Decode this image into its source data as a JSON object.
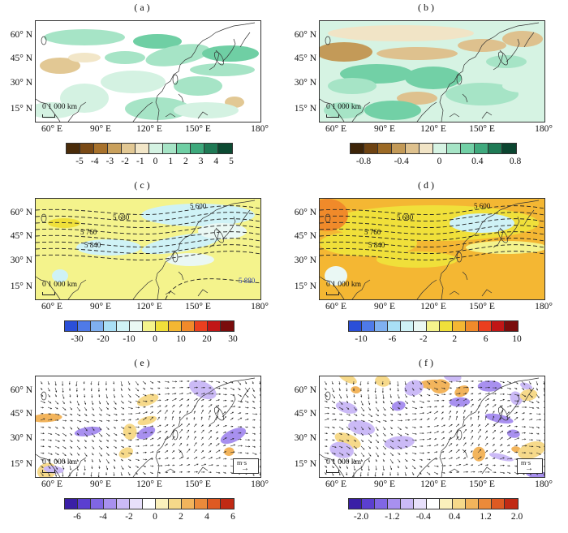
{
  "figure": {
    "panels": [
      {
        "id": "a",
        "label": "( a )",
        "kind": "scalar",
        "colorbar_ticks": [
          "-5",
          "-4",
          "-3",
          "-2",
          "-1",
          "0",
          "1",
          "2",
          "3",
          "4",
          "5"
        ],
        "colorbar_colors": [
          "#4a2c0a",
          "#7a4a16",
          "#a8722c",
          "#c9a05c",
          "#e2c894",
          "#f2e6c8",
          "#d4f2e2",
          "#a6e4c6",
          "#6fcfa4",
          "#3ea97c",
          "#1f7a55",
          "#0c4a32"
        ]
      },
      {
        "id": "b",
        "label": "( b )",
        "kind": "scalar",
        "colorbar_ticks": [
          "-0.8",
          "-0.4",
          "0",
          "0.4",
          "0.8"
        ],
        "colorbar_colors": [
          "#3d2408",
          "#6e4313",
          "#9c6a25",
          "#c39a58",
          "#dec18e",
          "#f1e4c6",
          "#d6f3e3",
          "#a6e4c6",
          "#72d0a6",
          "#40aa7e",
          "#1e7a55",
          "#0b4530"
        ]
      },
      {
        "id": "c",
        "label": "( c )",
        "kind": "contour",
        "colorbar_ticks": [
          "-30",
          "-20",
          "-10",
          "0",
          "10",
          "20",
          "30"
        ],
        "colorbar_colors": [
          "#2b4fd8",
          "#4f7ae8",
          "#7fb0f0",
          "#a9dff5",
          "#cff2f6",
          "#eaf8f4",
          "#f4f38c",
          "#f0e03a",
          "#f4b733",
          "#f08a2a",
          "#ea3f1f",
          "#c11616",
          "#7a0c0c"
        ],
        "contour_labels": [
          "5 600",
          "5 680",
          "5 760",
          "5 840",
          "5 880"
        ]
      },
      {
        "id": "d",
        "label": "( d )",
        "kind": "contour",
        "colorbar_ticks": [
          "-10",
          "-6",
          "-2",
          "2",
          "6",
          "10"
        ],
        "colorbar_colors": [
          "#2b4fd8",
          "#4f7ae8",
          "#7fb0f0",
          "#a9dff5",
          "#cff2f6",
          "#eaf8f4",
          "#f4f38c",
          "#f0e03a",
          "#f4b733",
          "#f08a2a",
          "#ea3f1f",
          "#c11616",
          "#7a0c0c"
        ],
        "contour_labels": [
          "5 600",
          "5 680",
          "5 760",
          "5 840"
        ]
      },
      {
        "id": "e",
        "label": "( e )",
        "kind": "vector",
        "colorbar_ticks": [
          "-6",
          "-4",
          "-2",
          "0",
          "2",
          "4",
          "6"
        ],
        "colorbar_colors": [
          "#3a1fa6",
          "#5b3fd0",
          "#8066e4",
          "#a890ef",
          "#cbbaf6",
          "#e8e0fb",
          "#ffffff",
          "#fbf0bc",
          "#f6d98a",
          "#f2b45c",
          "#eb8a3a",
          "#de5a22",
          "#c12a14"
        ],
        "reference_vector_label": "m·s"
      },
      {
        "id": "f",
        "label": "( f )",
        "kind": "vector",
        "colorbar_ticks": [
          "-2.0",
          "-1.2",
          "-0.4",
          "0.4",
          "1.2",
          "2.0"
        ],
        "colorbar_colors": [
          "#3a1fa6",
          "#5b3fd0",
          "#8066e4",
          "#a890ef",
          "#cbbaf6",
          "#e8e0fb",
          "#ffffff",
          "#fbf0bc",
          "#f6d98a",
          "#f2b45c",
          "#eb8a3a",
          "#de5a22",
          "#c12a14"
        ],
        "reference_vector_label": "m·s"
      }
    ],
    "lat_labels": [
      "60° N",
      "45° N",
      "30° N",
      "15° N"
    ],
    "lon_labels": [
      "60° E",
      "90° E",
      "120° E",
      "150° E",
      "180°"
    ],
    "scale_bar_label": "0 1 000 km"
  }
}
